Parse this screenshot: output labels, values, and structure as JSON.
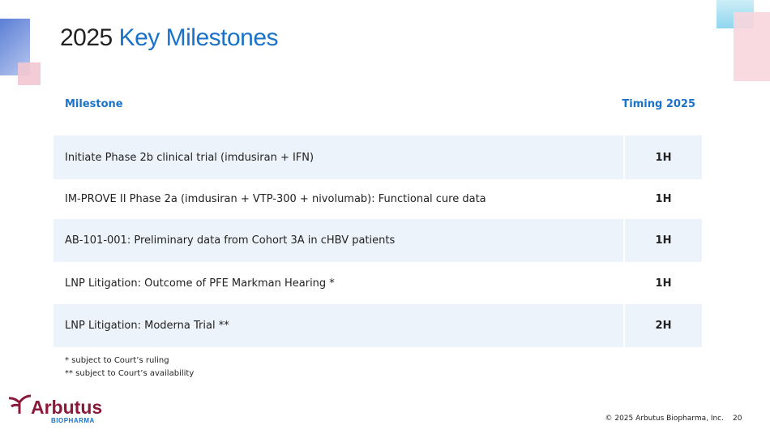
{
  "header": {
    "title_lead": "2025",
    "title_highlight": "Key Milestones"
  },
  "table": {
    "columns": [
      "Milestone",
      "Timing 2025"
    ],
    "rows": [
      [
        "Initiate Phase 2b clinical trial (imdusiran + IFN)",
        "1H"
      ],
      [
        "IM-PROVE II Phase 2a (imdusiran + VTP-300 + nivolumab): Functional cure data",
        "1H"
      ],
      [
        "AB-101-001: Preliminary data from Cohort 3A in cHBV patients",
        "1H"
      ],
      [
        "LNP Litigation: Outcome of PFE Markman Hearing *",
        "1H"
      ],
      [
        "LNP Litigation: Moderna Trial **",
        "2H"
      ]
    ]
  },
  "footnotes": [
    "* subject to Court’s ruling",
    "** subject to Court’s availability"
  ],
  "footer": {
    "logo_name": "Arbutus",
    "logo_sub": "BIOPHARMA",
    "copyright": "© 2025 Arbutus Biopharma, Inc.",
    "page": "20"
  }
}
